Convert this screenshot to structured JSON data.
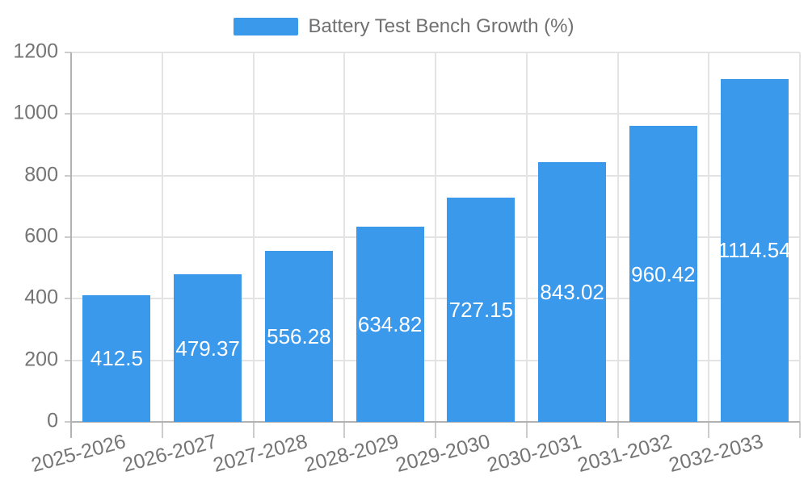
{
  "chart_data": {
    "type": "bar",
    "title": "Battery Test Bench Growth (%)",
    "legend": [
      "Battery Test Bench Growth (%)"
    ],
    "legend_position": "top-center",
    "categories": [
      "2025-2026",
      "2026-2027",
      "2027-2028",
      "2028-2029",
      "2029-2030",
      "2030-2031",
      "2031-2032",
      "2032-2033"
    ],
    "values": [
      412.5,
      479.37,
      556.28,
      634.82,
      727.15,
      843.02,
      960.42,
      1114.54
    ],
    "value_labels": [
      "412.5",
      "479.37",
      "556.28",
      "634.82",
      "727.15",
      "843.02",
      "960.42",
      "1114.54"
    ],
    "xlabel": "",
    "ylabel": "",
    "ylim": [
      0,
      1200
    ],
    "yticks": [
      0,
      200,
      400,
      600,
      800,
      1000,
      1200
    ],
    "grid": true,
    "colors": {
      "bar": "#3b99ec",
      "bar_value_text": "#ffffff",
      "axis_text": "#757575",
      "legend_text": "#707070",
      "gridline": "#e3e3e3",
      "axis_line": "#b2b2b2",
      "tick": "#cccccc"
    }
  }
}
